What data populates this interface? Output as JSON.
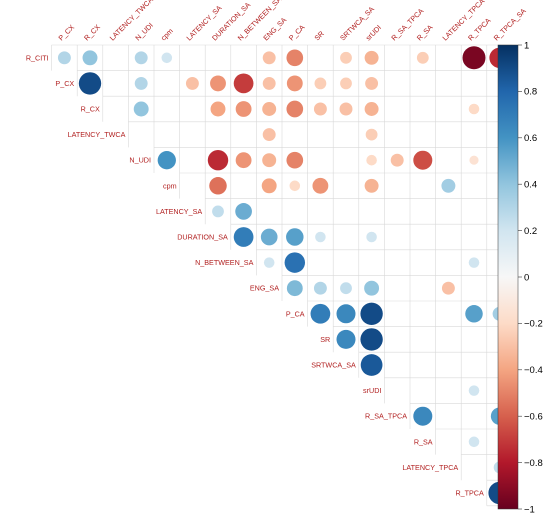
{
  "chart_data": {
    "type": "heatmap",
    "style": "upper-triangle correlation matrix drawn as circles; circle area and color encode correlation",
    "variables": [
      "R_CITI",
      "P_CX",
      "R_CX",
      "LATENCY_TWCA",
      "N_UDI",
      "cpm",
      "LATENCY_SA",
      "DURATION_SA",
      "N_BETWEEN_SA",
      "ENG_SA",
      "P_CA",
      "SR",
      "SRTWCA_SA",
      "srUDI",
      "R_SA_TPCA",
      "R_SA",
      "LATENCY_TPCA",
      "R_TPCA",
      "R_TPCA_SA"
    ],
    "column_labels": [
      "P_CX",
      "R_CX",
      "LATENCY_TWCA",
      "N_UDI",
      "cpm",
      "LATENCY_SA",
      "DURATION_SA",
      "N_BETWEEN_SA",
      "ENG_SA",
      "P_CA",
      "SR",
      "SRTWCA_SA",
      "srUDI",
      "R_SA_TPCA",
      "R_SA",
      "LATENCY_TPCA",
      "R_TPCA",
      "R_TPCA_SA"
    ],
    "row_labels": [
      "R_CITI",
      "P_CX",
      "R_CX",
      "LATENCY_TWCA",
      "N_UDI",
      "cpm",
      "LATENCY_SA",
      "DURATION_SA",
      "N_BETWEEN_SA",
      "ENG_SA",
      "P_CA",
      "SR",
      "SRTWCA_SA",
      "srUDI",
      "R_SA_TPCA",
      "R_SA",
      "LATENCY_TPCA",
      "R_TPCA"
    ],
    "correlations": {
      "R_CITI": {
        "P_CX": 0.3,
        "R_CX": 0.4,
        "N_UDI": 0.3,
        "cpm": 0.2,
        "ENG_SA": -0.3,
        "P_CA": -0.5,
        "SRTWCA_SA": -0.25,
        "srUDI": -0.35,
        "R_SA": -0.25,
        "R_TPCA": -0.95,
        "R_TPCA_SA": -0.75
      },
      "P_CX": {
        "R_CX": 0.9,
        "N_UDI": 0.3,
        "LATENCY_SA": -0.3,
        "DURATION_SA": -0.45,
        "N_BETWEEN_SA": -0.7,
        "ENG_SA": -0.3,
        "P_CA": -0.45,
        "SR": -0.25,
        "SRTWCA_SA": -0.25,
        "srUDI": -0.3
      },
      "R_CX": {
        "N_UDI": 0.4,
        "DURATION_SA": -0.4,
        "N_BETWEEN_SA": -0.45,
        "ENG_SA": -0.35,
        "P_CA": -0.5,
        "SR": -0.3,
        "SRTWCA_SA": -0.3,
        "srUDI": -0.35,
        "R_TPCA": -0.2
      },
      "LATENCY_TWCA": {
        "ENG_SA": -0.3,
        "srUDI": -0.25
      },
      "N_UDI": {
        "cpm": 0.6,
        "DURATION_SA": -0.75,
        "N_BETWEEN_SA": -0.45,
        "ENG_SA": -0.35,
        "P_CA": -0.5,
        "srUDI": -0.2,
        "R_SA_TPCA": -0.3,
        "R_SA": -0.65,
        "R_TPCA": -0.15
      },
      "cpm": {
        "DURATION_SA": -0.55,
        "ENG_SA": -0.4,
        "P_CA": -0.2,
        "SR": -0.45,
        "srUDI": -0.35,
        "LATENCY_TPCA": 0.35
      },
      "LATENCY_SA": {
        "DURATION_SA": 0.25,
        "N_BETWEEN_SA": 0.5
      },
      "DURATION_SA": {
        "N_BETWEEN_SA": 0.7,
        "ENG_SA": 0.5,
        "P_CA": 0.55,
        "SR": 0.2,
        "srUDI": 0.2
      },
      "N_BETWEEN_SA": {
        "ENG_SA": 0.2,
        "P_CA": 0.75,
        "R_TPCA": 0.2
      },
      "ENG_SA": {
        "P_CA": 0.45,
        "SR": 0.3,
        "SRTWCA_SA": 0.25,
        "srUDI": 0.4,
        "LATENCY_TPCA": -0.3
      },
      "P_CA": {
        "SR": 0.7,
        "SRTWCA_SA": 0.65,
        "srUDI": 0.9,
        "R_TPCA": 0.55,
        "R_TPCA_SA": 0.35
      },
      "SR": {
        "SRTWCA_SA": 0.65,
        "srUDI": 0.9
      },
      "SRTWCA_SA": {
        "srUDI": 0.85
      },
      "srUDI": {
        "R_TPCA": 0.2
      },
      "R_SA_TPCA": {
        "R_SA": 0.65,
        "R_TPCA_SA": 0.55
      },
      "R_SA": {
        "R_TPCA": 0.2
      },
      "LATENCY_TPCA": {
        "R_TPCA_SA": 0.25
      },
      "R_TPCA": {
        "R_TPCA_SA": 0.9
      }
    },
    "colorbar": {
      "min": -1,
      "max": 1,
      "ticks": [
        "1",
        "0.8",
        "0.6",
        "0.4",
        "0.2",
        "0",
        "−0.2",
        "−0.4",
        "−0.6",
        "−0.8",
        "−1"
      ],
      "high_color": "#053061",
      "mid_color": "#f7f7f7",
      "low_color": "#67001f"
    },
    "grid": true,
    "label_color": "#b22222"
  }
}
